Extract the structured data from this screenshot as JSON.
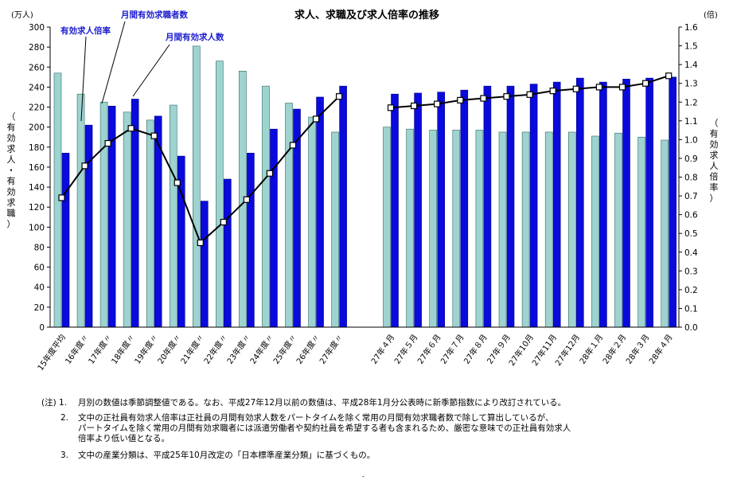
{
  "chart_data": {
    "type": "bar+line",
    "title": "求人、求職及び求人倍率の推移",
    "left_unit": "(万人)",
    "right_unit": "(倍)",
    "left_axis_label": "（有効求人・有効求職）",
    "right_axis_label": "（有効求人倍率）",
    "ylim_left": [
      0,
      300
    ],
    "ylim_right": [
      0.0,
      1.6
    ],
    "left_ticks": [
      "0",
      "20",
      "40",
      "60",
      "80",
      "100",
      "120",
      "140",
      "160",
      "180",
      "200",
      "220",
      "240",
      "260",
      "280",
      "300"
    ],
    "right_ticks": [
      "0.0",
      "0.1",
      "0.2",
      "0.3",
      "0.4",
      "0.5",
      "0.6",
      "0.7",
      "0.8",
      "0.9",
      "1.0",
      "1.1",
      "1.2",
      "1.3",
      "1.4",
      "1.5",
      "1.6"
    ],
    "categories": [
      "15年度平均",
      "16年度〃",
      "17年度〃",
      "18年度〃",
      "19年度〃",
      "20年度〃",
      "21年度〃",
      "22年度〃",
      "23年度〃",
      "24年度〃",
      "25年度〃",
      "26年度〃",
      "27年度〃",
      "27年４月",
      "27年５月",
      "27年６月",
      "27年７月",
      "27年８月",
      "27年９月",
      "27年10月",
      "27年11月",
      "27年12月",
      "28年１月",
      "28年２月",
      "28年３月",
      "28年４月"
    ],
    "series": [
      {
        "name": "月間有効求職者数",
        "color": "#9ed3cf",
        "values": [
          254,
          233,
          225,
          215,
          207,
          222,
          281,
          266,
          256,
          241,
          224,
          210,
          195,
          200,
          198,
          197,
          197,
          197,
          195,
          195,
          195,
          195,
          191,
          194,
          190,
          187
        ]
      },
      {
        "name": "月間有効求人数",
        "color": "#0a0adc",
        "values": [
          174,
          202,
          221,
          228,
          211,
          171,
          126,
          148,
          174,
          198,
          218,
          230,
          241,
          233,
          234,
          235,
          237,
          241,
          241,
          243,
          245,
          249,
          245,
          248,
          249,
          250
        ]
      },
      {
        "name": "有効求人倍率",
        "color": "#000000",
        "values": [
          0.69,
          0.86,
          0.98,
          1.06,
          1.02,
          0.77,
          0.45,
          0.56,
          0.68,
          0.82,
          0.97,
          1.11,
          1.23,
          1.17,
          1.18,
          1.19,
          1.21,
          1.22,
          1.23,
          1.24,
          1.26,
          1.27,
          1.28,
          1.28,
          1.3,
          1.34
        ]
      }
    ],
    "annotations": [
      "有効求人倍率",
      "月間有効求職者数",
      "月間有効求人数"
    ]
  },
  "notes": [
    {
      "num": "(注) 1.",
      "lines": [
        "月別の数値は季節調整値である。なお、平成27年12月以前の数値は、平成28年1月分公表時に新季節指数により改訂されている。"
      ]
    },
    {
      "num": "2.",
      "lines": [
        "文中の正社員有効求人倍率は正社員の月間有効求人数をパートタイムを除く常用の月間有効求職者数で除して算出しているが、",
        "パートタイムを除く常用の月間有効求職者には派遣労働者や契約社員を希望する者も含まれるため、厳密な意味での正社員有効求人",
        "倍率より低い値となる。"
      ]
    },
    {
      "num": "3.",
      "lines": [
        "文中の産業分類は、平成25年10月改定の「日本標準産業分類」に基づくもの。"
      ]
    }
  ],
  "page_mark": "-"
}
